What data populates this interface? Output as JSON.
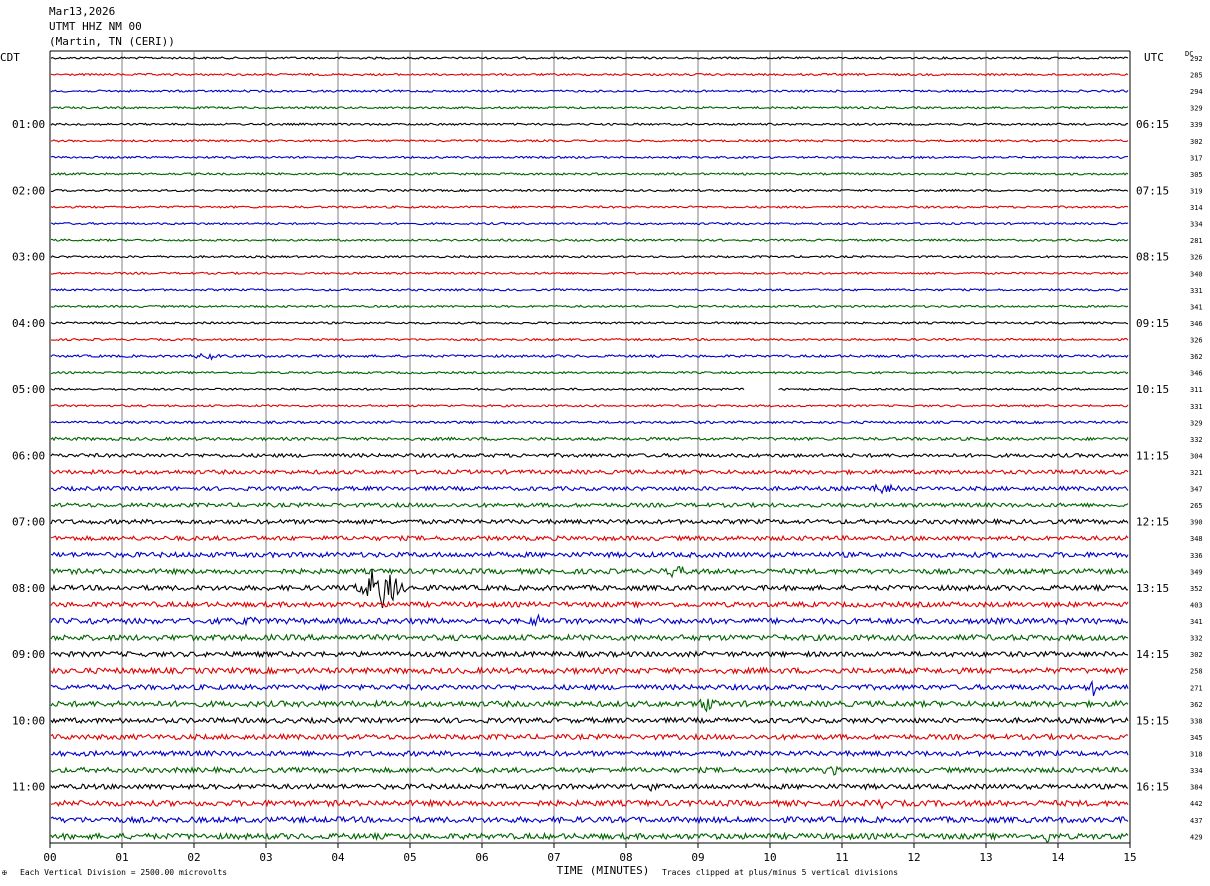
{
  "header": {
    "date": "Mar13,2026",
    "station": "UTMT HHZ NM 00",
    "location": "(Martin, TN (CERI))"
  },
  "chart_data": {
    "type": "line",
    "left_label": "CDT",
    "right_label": "UTC",
    "dc_label": "DC",
    "xlabel": "TIME (MINUTES)",
    "xlim": [
      0,
      15
    ],
    "xticks": [
      "00",
      "01",
      "02",
      "03",
      "04",
      "05",
      "06",
      "07",
      "08",
      "09",
      "10",
      "11",
      "12",
      "13",
      "14",
      "15"
    ],
    "left_hour_labels": [
      "01:00",
      "02:00",
      "03:00",
      "04:00",
      "05:00",
      "06:00",
      "07:00",
      "08:00",
      "09:00",
      "10:00",
      "11:00"
    ],
    "right_hour_labels": [
      "06:15",
      "07:15",
      "08:15",
      "09:15",
      "10:15",
      "11:15",
      "12:15",
      "13:15",
      "14:15",
      "15:15",
      "16:15"
    ],
    "trace_colors": [
      "#000000",
      "#e00000",
      "#0000c8",
      "#006400"
    ],
    "dc_offsets": [
      292,
      285,
      294,
      329,
      339,
      302,
      317,
      305,
      319,
      314,
      334,
      281,
      326,
      340,
      331,
      341,
      346,
      326,
      362,
      346,
      311,
      331,
      329,
      332,
      304,
      321,
      347,
      265,
      390,
      348,
      336,
      349,
      352,
      403,
      341,
      332,
      302,
      258,
      271,
      362,
      338,
      345,
      318,
      334,
      384,
      442,
      437,
      429
    ],
    "noise_levels": [
      1,
      1,
      1,
      1,
      1,
      1,
      1,
      1,
      1,
      1,
      1,
      1,
      1,
      1,
      1,
      1,
      1,
      1,
      1.2,
      1,
      1,
      1,
      1.2,
      1.5,
      1.8,
      2,
      2,
      2,
      2.2,
      2.2,
      2.5,
      2.5,
      2.5,
      2.5,
      2.8,
      2.8,
      2.5,
      2.8,
      2.5,
      2.8,
      2.5,
      2.5,
      2.5,
      2.5,
      2.5,
      2.8,
      2.8,
      2.8
    ],
    "events": [
      {
        "trace": 32,
        "minute": 4.6,
        "amplitude": 22,
        "duration": 0.6
      },
      {
        "trace": 18,
        "minute": 2.2,
        "amplitude": 3,
        "duration": 0.4
      },
      {
        "trace": 26,
        "minute": 11.6,
        "amplitude": 4,
        "duration": 0.4
      },
      {
        "trace": 31,
        "minute": 8.7,
        "amplitude": 5,
        "duration": 0.3
      },
      {
        "trace": 34,
        "minute": 0.7,
        "amplitude": 5,
        "duration": 0.2
      },
      {
        "trace": 34,
        "minute": 2.7,
        "amplitude": 5,
        "duration": 0.3
      },
      {
        "trace": 34,
        "minute": 6.8,
        "amplitude": 5,
        "duration": 0.2
      },
      {
        "trace": 39,
        "minute": 9.1,
        "amplitude": 6,
        "duration": 0.3
      },
      {
        "trace": 38,
        "minute": 14.5,
        "amplitude": 8,
        "duration": 0.2
      },
      {
        "trace": 44,
        "minute": 8.35,
        "amplitude": 6,
        "duration": 0.1
      },
      {
        "trace": 43,
        "minute": 10.85,
        "amplitude": 4,
        "duration": 0.2
      },
      {
        "trace": 45,
        "minute": 11.5,
        "amplitude": 4,
        "duration": 0.2
      },
      {
        "trace": 47,
        "minute": 13.85,
        "amplitude": 6,
        "duration": 0.1
      }
    ],
    "gaps": [
      {
        "trace": 20,
        "start": 9.65,
        "end": 10.1
      }
    ]
  },
  "footer": {
    "scale_note": "Each Vertical Division = 2500.00 microvolts",
    "clip_note": "Traces clipped at plus/minus 5 vertical divisions",
    "corner_mark": "✠"
  }
}
